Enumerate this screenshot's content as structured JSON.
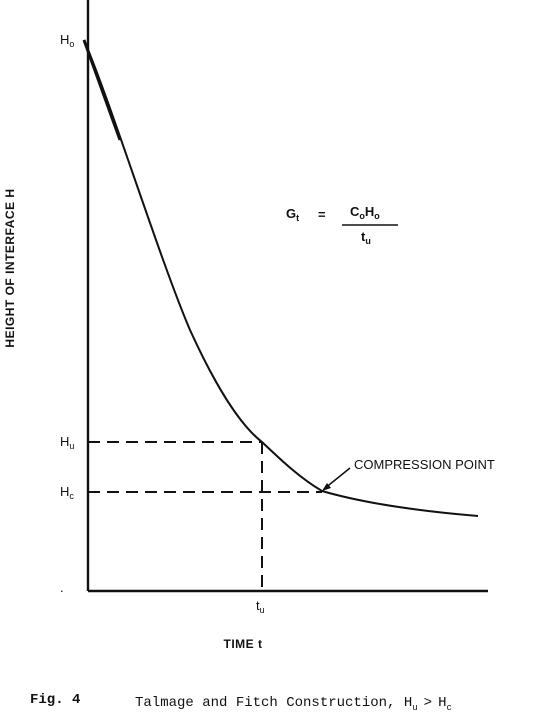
{
  "figure": {
    "y_axis_label": "HEIGHT OF INTERFACE H",
    "x_axis_label": "TIME t",
    "labels": {
      "H0": {
        "base": "H",
        "sub": "o"
      },
      "Hu": {
        "base": "H",
        "sub": "u"
      },
      "Hc": {
        "base": "H",
        "sub": "c"
      },
      "tu": {
        "base": "t",
        "sub": "u"
      }
    },
    "annotation": "COMPRESSION POINT",
    "formula": {
      "lhs_base": "G",
      "lhs_sub": "t",
      "equals": "=",
      "numerator_c": "C",
      "numerator_c_sub": "o",
      "numerator_h": "H",
      "numerator_h_sub": "o",
      "denominator_base": "t",
      "denominator_sub": "u"
    },
    "caption": {
      "fig_label": "Fig. 4",
      "text": "Talmage and Fitch Construction, H",
      "text_sub_u": "u",
      "gt": ">",
      "h2": "H",
      "h2_sub": "c"
    }
  }
}
